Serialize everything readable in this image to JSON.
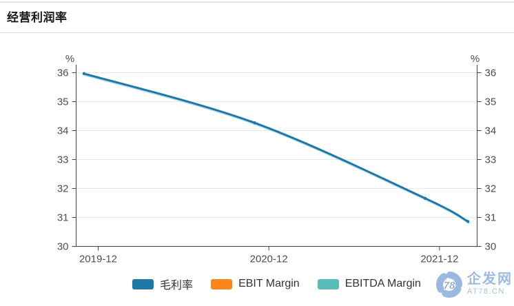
{
  "header": {
    "title": "经营利润率"
  },
  "chart_data": {
    "type": "line",
    "title": "经营利润率",
    "y_unit": "%",
    "ylim": [
      30,
      36
    ],
    "y_ticks": [
      30,
      31,
      32,
      33,
      34,
      35,
      36
    ],
    "y_tick_sides": "both",
    "grid": true,
    "legend_position": "bottom",
    "x_ticks": [
      {
        "label": "2019-12",
        "month": 1
      },
      {
        "label": "2020-12",
        "month": 13
      },
      {
        "label": "2021-12",
        "month": 25
      }
    ],
    "series": [
      {
        "name": "毛利率",
        "id": "gross-margin",
        "color": "#1f78a8",
        "halo_color": "#aedcef",
        "points": [
          {
            "month": 0,
            "value": 35.97
          },
          {
            "month": 12,
            "value": 34.27
          },
          {
            "month": 24,
            "value": 31.66
          },
          {
            "month": 27,
            "value": 30.86
          }
        ]
      },
      {
        "name": "EBIT Margin",
        "id": "ebit-margin",
        "color": "#f8861d",
        "points": []
      },
      {
        "name": "EBITDA Margin",
        "id": "ebitda-margin",
        "color": "#5bbcb8",
        "points": []
      }
    ]
  },
  "watermark": {
    "name": "企发网",
    "url": "AT78.CN"
  }
}
